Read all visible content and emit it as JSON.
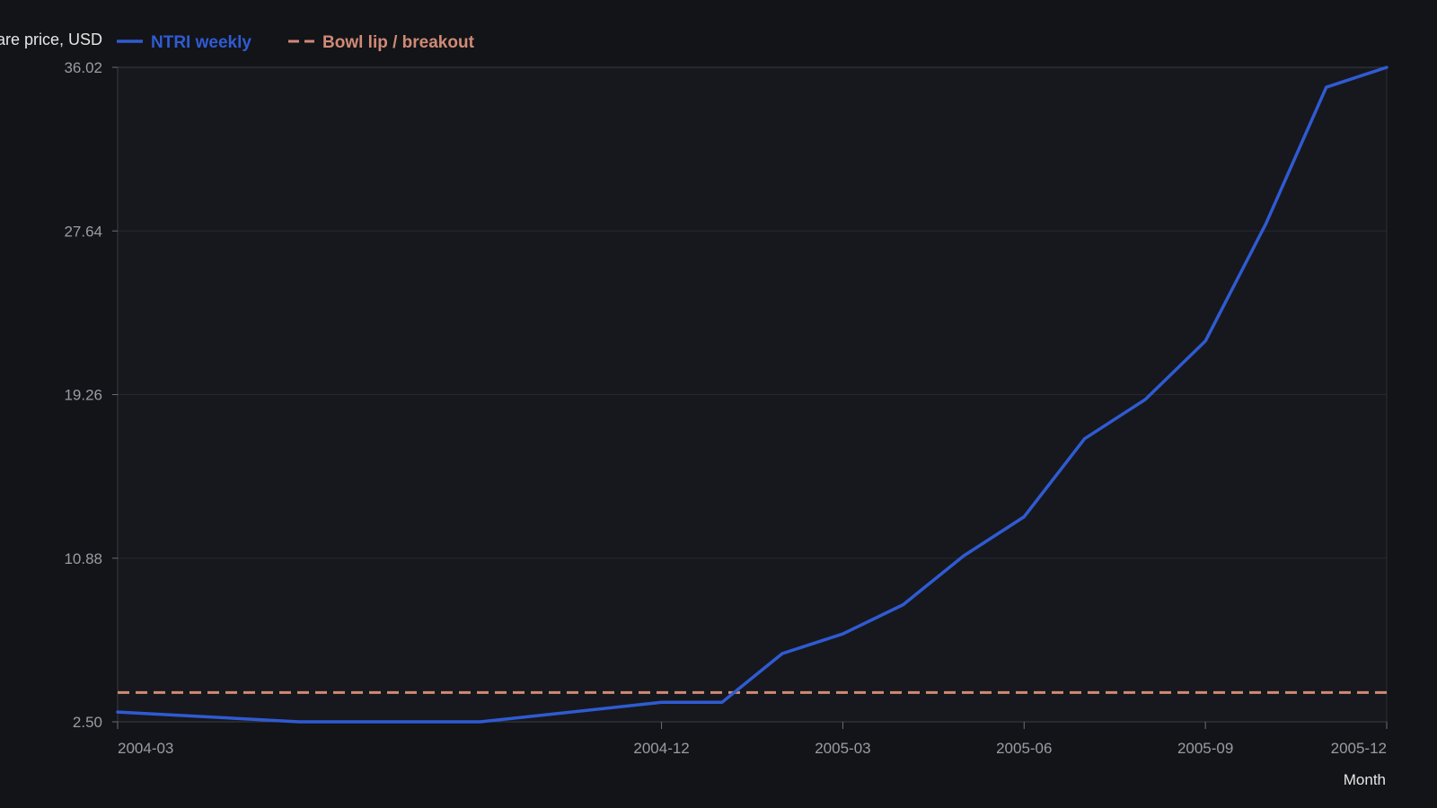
{
  "chart_data": {
    "type": "line",
    "title": "",
    "xlabel": "Month",
    "ylabel": "Share price, USD",
    "ylim": [
      2.5,
      36.02
    ],
    "yticks": [
      "36.02",
      "27.64",
      "19.26",
      "10.88",
      "2.50"
    ],
    "xticks": [
      "2004-03",
      "2004-12",
      "2005-03",
      "2005-06",
      "2005-09",
      "2005-12"
    ],
    "xlim": [
      "2004-03",
      "2005-12"
    ],
    "grid": true,
    "legend_position": "top-left",
    "series": [
      {
        "name": "NTRI weekly",
        "color": "#2f5bd3",
        "style": "solid",
        "points": [
          [
            "2004-03",
            3.0
          ],
          [
            "2004-06",
            2.5
          ],
          [
            "2004-09",
            2.5
          ],
          [
            "2004-12",
            3.5
          ],
          [
            "2005-01",
            3.5
          ],
          [
            "2005-02",
            6.0
          ],
          [
            "2005-03",
            7.0
          ],
          [
            "2005-04",
            8.5
          ],
          [
            "2005-05",
            11.0
          ],
          [
            "2005-06",
            13.0
          ],
          [
            "2005-07",
            17.0
          ],
          [
            "2005-08",
            19.0
          ],
          [
            "2005-09",
            22.0
          ],
          [
            "2005-10",
            28.0
          ],
          [
            "2005-11",
            35.0
          ],
          [
            "2005-12",
            36.02
          ]
        ]
      },
      {
        "name": "Bowl lip / breakout",
        "color": "#d08a76",
        "style": "dashed",
        "value": 4.0
      }
    ]
  }
}
